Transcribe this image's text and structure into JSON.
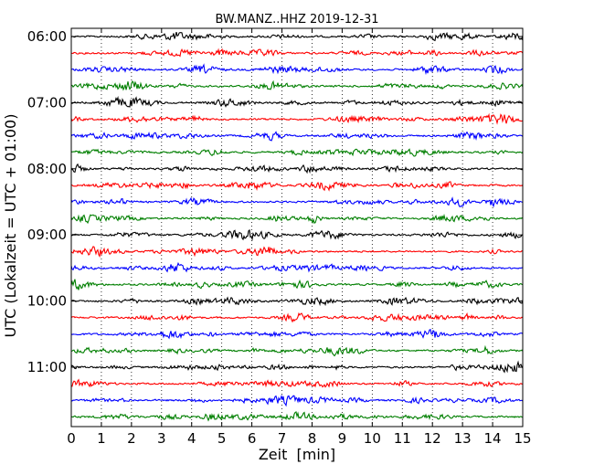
{
  "chart_data": {
    "type": "line",
    "title": "BW.MANZ..HHZ 2019-12-31",
    "xlabel": "Zeit  [min]",
    "ylabel": "UTC (Lokalzeit = UTC + 01:00)",
    "xlim": [
      0,
      15
    ],
    "x_ticks": [
      "0",
      "1",
      "2",
      "3",
      "4",
      "5",
      "6",
      "7",
      "8",
      "9",
      "10",
      "11",
      "12",
      "13",
      "14",
      "15"
    ],
    "y_tick_labels": [
      "06:00",
      "07:00",
      "08:00",
      "09:00",
      "10:00",
      "11:00"
    ],
    "grid": "vertical dotted",
    "trace_colors": [
      "#000000",
      "#ff0000",
      "#0000ff",
      "#007f00"
    ],
    "trace_starts": [
      "06:00",
      "06:15",
      "06:30",
      "06:45",
      "07:00",
      "07:15",
      "07:30",
      "07:45",
      "08:00",
      "08:15",
      "08:30",
      "08:45",
      "09:00",
      "09:15",
      "09:30",
      "09:45",
      "10:00",
      "10:15",
      "10:30",
      "10:45",
      "11:00",
      "11:15",
      "11:30",
      "11:45"
    ],
    "trace_minutes_each": 15
  }
}
